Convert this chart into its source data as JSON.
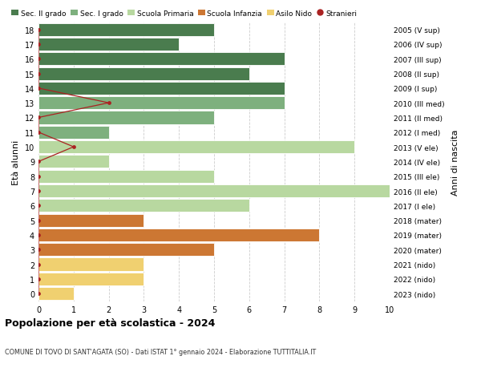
{
  "ages": [
    18,
    17,
    16,
    15,
    14,
    13,
    12,
    11,
    10,
    9,
    8,
    7,
    6,
    5,
    4,
    3,
    2,
    1,
    0
  ],
  "years": [
    "2005 (V sup)",
    "2006 (IV sup)",
    "2007 (III sup)",
    "2008 (II sup)",
    "2009 (I sup)",
    "2010 (III med)",
    "2011 (II med)",
    "2012 (I med)",
    "2013 (V ele)",
    "2014 (IV ele)",
    "2015 (III ele)",
    "2016 (II ele)",
    "2017 (I ele)",
    "2018 (mater)",
    "2019 (mater)",
    "2020 (mater)",
    "2021 (nido)",
    "2022 (nido)",
    "2023 (nido)"
  ],
  "values": [
    5,
    4,
    7,
    6,
    7,
    7,
    5,
    2,
    9,
    2,
    5,
    10,
    6,
    3,
    8,
    5,
    3,
    3,
    1
  ],
  "bar_colors": [
    "#4a7c4e",
    "#4a7c4e",
    "#4a7c4e",
    "#4a7c4e",
    "#4a7c4e",
    "#7eb07e",
    "#7eb07e",
    "#7eb07e",
    "#b8d8a0",
    "#b8d8a0",
    "#b8d8a0",
    "#b8d8a0",
    "#b8d8a0",
    "#cc7733",
    "#cc7733",
    "#cc7733",
    "#f0d070",
    "#f0d070",
    "#f0d070"
  ],
  "stranieri_ages": [
    18,
    17,
    16,
    15,
    14,
    13,
    12,
    11,
    10,
    9,
    8,
    7,
    6,
    5,
    4,
    3,
    2,
    1,
    0
  ],
  "stranieri_values": [
    0,
    0,
    0,
    0,
    0,
    2,
    0,
    0,
    1,
    0,
    0,
    0,
    0,
    0,
    0,
    0,
    0,
    0,
    0
  ],
  "stranieri_color": "#aa2222",
  "legend_labels": [
    "Sec. II grado",
    "Sec. I grado",
    "Scuola Primaria",
    "Scuola Infanzia",
    "Asilo Nido",
    "Stranieri"
  ],
  "legend_colors": [
    "#4a7c4e",
    "#7eb07e",
    "#b8d8a0",
    "#cc7733",
    "#f0d070",
    "#aa2222"
  ],
  "ylabel_left": "Età alunni",
  "ylabel_right": "Anni di nascita",
  "title": "Popolazione per età scolastica - 2024",
  "subtitle": "COMUNE DI TOVO DI SANT'AGATA (SO) - Dati ISTAT 1° gennaio 2024 - Elaborazione TUTTITALIA.IT",
  "xlim": [
    0,
    10
  ],
  "ylim_low": -0.55,
  "ylim_high": 18.55,
  "background_color": "#ffffff",
  "grid_color": "#cccccc"
}
